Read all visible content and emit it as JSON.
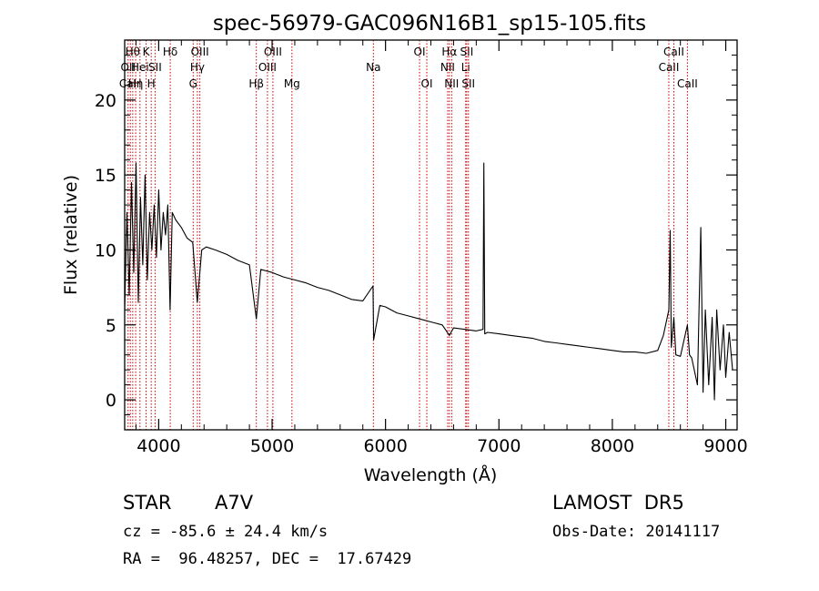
{
  "chart_data": {
    "type": "line",
    "title": "spec-56979-GAC096N16B1_sp15-105.fits",
    "xlabel": "Wavelength (Å)",
    "ylabel": "Flux (relative)",
    "xlim": [
      3700,
      9100
    ],
    "ylim": [
      -2,
      24
    ],
    "xticks": [
      "4000",
      "5000",
      "6000",
      "7000",
      "8000",
      "9000"
    ],
    "yticks": [
      "0",
      "5",
      "10",
      "15",
      "20"
    ],
    "line_color": "#000000",
    "marker_color": "#cc0000",
    "series": [
      {
        "values": [
          [
            3700,
            6.0
          ],
          [
            3720,
            12.5
          ],
          [
            3740,
            7.0
          ],
          [
            3760,
            14.5
          ],
          [
            3780,
            8.5
          ],
          [
            3800,
            15.8
          ],
          [
            3820,
            6.5
          ],
          [
            3840,
            13.5
          ],
          [
            3860,
            9.0
          ],
          [
            3880,
            15.0
          ],
          [
            3900,
            8.0
          ],
          [
            3920,
            12.5
          ],
          [
            3940,
            10.0
          ],
          [
            3960,
            13.0
          ],
          [
            3980,
            9.5
          ],
          [
            4000,
            14.0
          ],
          [
            4020,
            10.0
          ],
          [
            4040,
            12.5
          ],
          [
            4060,
            11.0
          ],
          [
            4080,
            13.0
          ],
          [
            4100,
            6.0
          ],
          [
            4120,
            12.5
          ],
          [
            4150,
            12.0
          ],
          [
            4200,
            11.5
          ],
          [
            4250,
            10.8
          ],
          [
            4300,
            10.5
          ],
          [
            4340,
            6.5
          ],
          [
            4380,
            10.0
          ],
          [
            4420,
            10.2
          ],
          [
            4500,
            10.0
          ],
          [
            4600,
            9.7
          ],
          [
            4700,
            9.3
          ],
          [
            4800,
            9.0
          ],
          [
            4861,
            5.4
          ],
          [
            4900,
            8.7
          ],
          [
            5000,
            8.5
          ],
          [
            5100,
            8.2
          ],
          [
            5200,
            8.0
          ],
          [
            5300,
            7.8
          ],
          [
            5400,
            7.5
          ],
          [
            5500,
            7.3
          ],
          [
            5600,
            7.0
          ],
          [
            5700,
            6.7
          ],
          [
            5800,
            6.6
          ],
          [
            5890,
            7.6
          ],
          [
            5895,
            4.0
          ],
          [
            5950,
            6.3
          ],
          [
            6000,
            6.2
          ],
          [
            6100,
            5.8
          ],
          [
            6200,
            5.6
          ],
          [
            6300,
            5.4
          ],
          [
            6400,
            5.2
          ],
          [
            6500,
            5.0
          ],
          [
            6563,
            4.3
          ],
          [
            6600,
            4.8
          ],
          [
            6700,
            4.7
          ],
          [
            6800,
            4.6
          ],
          [
            6860,
            4.7
          ],
          [
            6867,
            15.8
          ],
          [
            6875,
            4.4
          ],
          [
            6900,
            4.5
          ],
          [
            7000,
            4.4
          ],
          [
            7100,
            4.3
          ],
          [
            7200,
            4.2
          ],
          [
            7300,
            4.1
          ],
          [
            7400,
            3.9
          ],
          [
            7500,
            3.8
          ],
          [
            7600,
            3.7
          ],
          [
            7700,
            3.6
          ],
          [
            7800,
            3.5
          ],
          [
            7900,
            3.4
          ],
          [
            8000,
            3.3
          ],
          [
            8100,
            3.2
          ],
          [
            8200,
            3.2
          ],
          [
            8300,
            3.1
          ],
          [
            8400,
            3.3
          ],
          [
            8450,
            4.3
          ],
          [
            8498,
            6.0
          ],
          [
            8510,
            11.3
          ],
          [
            8520,
            3.5
          ],
          [
            8542,
            5.5
          ],
          [
            8560,
            3.0
          ],
          [
            8600,
            2.9
          ],
          [
            8662,
            5.0
          ],
          [
            8680,
            3.0
          ],
          [
            8700,
            2.8
          ],
          [
            8750,
            1.0
          ],
          [
            8780,
            11.5
          ],
          [
            8800,
            0.5
          ],
          [
            8820,
            6.0
          ],
          [
            8850,
            1.0
          ],
          [
            8880,
            5.5
          ],
          [
            8900,
            0.0
          ],
          [
            8920,
            6.0
          ],
          [
            8950,
            2.0
          ],
          [
            8980,
            5.0
          ],
          [
            9000,
            1.5
          ],
          [
            9030,
            4.5
          ],
          [
            9060,
            2.0
          ]
        ]
      }
    ],
    "markers": [
      {
        "wl": 3730,
        "label": "OII",
        "row": 2
      },
      {
        "wl": 3750,
        "label": "CaH",
        "row": 3
      },
      {
        "wl": 3771,
        "label": "Hθ",
        "row": 1
      },
      {
        "wl": 3797,
        "label": "Hη",
        "row": 3
      },
      {
        "wl": 3835,
        "label": "Hei",
        "row": 2
      },
      {
        "wl": 3889,
        "label": "K",
        "row": 1
      },
      {
        "wl": 3934,
        "label": "H",
        "row": 3
      },
      {
        "wl": 3968,
        "label": "SII",
        "row": 2
      },
      {
        "wl": 4102,
        "label": "Hδ",
        "row": 1
      },
      {
        "wl": 4304,
        "label": "G",
        "row": 3
      },
      {
        "wl": 4341,
        "label": "Hγ",
        "row": 2
      },
      {
        "wl": 4363,
        "label": "OIII",
        "row": 1
      },
      {
        "wl": 4861,
        "label": "Hβ",
        "row": 3
      },
      {
        "wl": 4959,
        "label": "OIII",
        "row": 2
      },
      {
        "wl": 5007,
        "label": "OIII",
        "row": 1
      },
      {
        "wl": 5175,
        "label": "Mg",
        "row": 3
      },
      {
        "wl": 5893,
        "label": "Na",
        "row": 2
      },
      {
        "wl": 6300,
        "label": "OI",
        "row": 1
      },
      {
        "wl": 6364,
        "label": "OI",
        "row": 3
      },
      {
        "wl": 6548,
        "label": "NII",
        "row": 2
      },
      {
        "wl": 6563,
        "label": "Hα",
        "row": 1
      },
      {
        "wl": 6583,
        "label": "NII",
        "row": 3
      },
      {
        "wl": 6707,
        "label": "Li",
        "row": 2
      },
      {
        "wl": 6716,
        "label": "SII",
        "row": 1
      },
      {
        "wl": 6731,
        "label": "SII",
        "row": 3
      },
      {
        "wl": 8498,
        "label": "CaII",
        "row": 2
      },
      {
        "wl": 8542,
        "label": "CaII",
        "row": 1
      },
      {
        "wl": 8662,
        "label": "CaII",
        "row": 3
      }
    ]
  },
  "info": {
    "object_class": "STAR",
    "subclass": "A7V",
    "survey": "LAMOST  DR5",
    "cz": "cz = -85.6 ± 24.4 km/s",
    "obs_date": "Obs-Date: 20141117",
    "coords": "RA =  96.48257, DEC =  17.67429"
  }
}
